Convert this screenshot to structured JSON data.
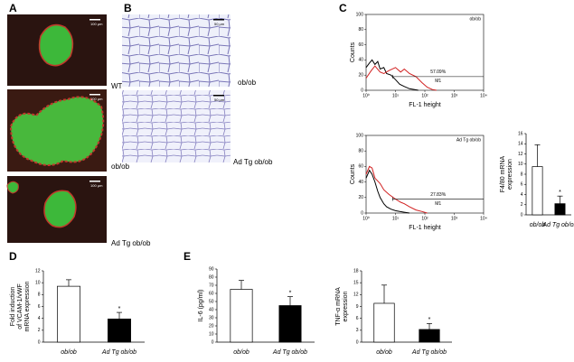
{
  "panels": {
    "a": "A",
    "b": "B",
    "c": "C",
    "d": "D",
    "e": "E"
  },
  "images": {
    "a_captions": [
      "WT",
      "ob/ob",
      "Ad Tg ob/ob"
    ],
    "a_scale": "100 μm",
    "b_captions": [
      "ob/ob",
      "Ad Tg ob/ob"
    ],
    "b_scale": "50 μm"
  },
  "chart_data": [
    {
      "type": "flow",
      "title": "ob/ob",
      "ylabel": "Counts",
      "xlabel": "FL-1 height",
      "log_x": true,
      "xlim": [
        1,
        10000
      ],
      "xticks": [
        {
          "value": 1,
          "label": "10⁰"
        },
        {
          "value": 10,
          "label": "10¹"
        },
        {
          "value": 100,
          "label": "10²"
        },
        {
          "value": 1000,
          "label": "10³"
        },
        {
          "value": 10000,
          "label": "10⁴"
        }
      ],
      "ylim": [
        0,
        100
      ],
      "yticks": [
        0,
        20,
        40,
        60,
        80,
        100
      ],
      "gate": {
        "x": [
          8,
          10000
        ],
        "y": 18,
        "label": "M1",
        "percent": "57.09%"
      },
      "series": [
        {
          "color": "#000000",
          "x": [
            1,
            1.3,
            1.6,
            2,
            2.5,
            3,
            4,
            5,
            7,
            10,
            14,
            20,
            30,
            45,
            60
          ],
          "values": [
            30,
            36,
            40,
            34,
            38,
            28,
            30,
            22,
            20,
            14,
            8,
            5,
            2,
            1,
            0
          ]
        },
        {
          "color": "#d11f1f",
          "x": [
            1,
            1.5,
            2,
            3,
            4,
            6,
            10,
            15,
            20,
            30,
            50,
            80,
            120,
            180,
            250
          ],
          "values": [
            16,
            26,
            32,
            24,
            22,
            26,
            30,
            24,
            28,
            22,
            18,
            10,
            4,
            1,
            0
          ]
        }
      ]
    },
    {
      "type": "flow",
      "title": "Ad Tg ob/ob",
      "ylabel": "Counts",
      "xlabel": "FL-1 height",
      "log_x": true,
      "xlim": [
        1,
        10000
      ],
      "xticks": [
        {
          "value": 1,
          "label": "10⁰"
        },
        {
          "value": 10,
          "label": "10¹"
        },
        {
          "value": 100,
          "label": "10²"
        },
        {
          "value": 1000,
          "label": "10³"
        },
        {
          "value": 10000,
          "label": "10⁴"
        }
      ],
      "ylim": [
        0,
        100
      ],
      "yticks": [
        0,
        20,
        40,
        60,
        80,
        100
      ],
      "gate": {
        "x": [
          8,
          10000
        ],
        "y": 18,
        "label": "M1",
        "percent": "27.83%"
      },
      "series": [
        {
          "color": "#000000",
          "x": [
            1,
            1.3,
            1.6,
            2,
            2.5,
            3,
            4,
            5,
            7,
            10,
            14,
            20,
            30
          ],
          "values": [
            45,
            55,
            50,
            40,
            28,
            20,
            12,
            8,
            5,
            3,
            2,
            1,
            0
          ]
        },
        {
          "color": "#d11f1f",
          "x": [
            1,
            1.3,
            1.6,
            2,
            3,
            4,
            6,
            10,
            15,
            20,
            30,
            50,
            80,
            120
          ],
          "values": [
            50,
            60,
            58,
            45,
            38,
            30,
            24,
            18,
            14,
            12,
            8,
            4,
            2,
            0
          ]
        }
      ]
    },
    {
      "type": "bar",
      "ylabel": [
        "F4/80 mRNA",
        "expression"
      ],
      "categories": [
        "ob/ob",
        "Ad Tg ob/ob"
      ],
      "values": [
        9.5,
        2.2
      ],
      "errors": [
        4.3,
        1.5
      ],
      "colors": [
        "#ffffff",
        "#000000"
      ],
      "ylim": [
        0,
        16
      ],
      "yticks": [
        0,
        2,
        4,
        6,
        8,
        10,
        12,
        14,
        16
      ],
      "marker": "*",
      "significant": [
        false,
        true
      ]
    },
    {
      "type": "bar",
      "ylabel": [
        "Fold induction",
        "of VCAM-1/vWF",
        "mRNA expression"
      ],
      "categories": [
        "ob/ob",
        "Ad Tg ob/ob"
      ],
      "values": [
        9.4,
        3.9
      ],
      "errors": [
        1.1,
        1.1
      ],
      "colors": [
        "#ffffff",
        "#000000"
      ],
      "ylim": [
        0,
        12
      ],
      "yticks": [
        0,
        2,
        4,
        6,
        8,
        10,
        12
      ],
      "marker": "*",
      "significant": [
        false,
        true
      ]
    },
    {
      "type": "bar",
      "ylabel": [
        "IL-6 (pg/ml)"
      ],
      "categories": [
        "ob/ob",
        "Ad Tg ob/ob"
      ],
      "values": [
        65,
        45
      ],
      "errors": [
        11,
        11
      ],
      "colors": [
        "#ffffff",
        "#000000"
      ],
      "ylim": [
        0,
        90
      ],
      "yticks": [
        0,
        10,
        20,
        30,
        40,
        50,
        60,
        70,
        80,
        90
      ],
      "marker": "*",
      "significant": [
        false,
        true
      ]
    },
    {
      "type": "bar",
      "ylabel": [
        "TNF-α mRNA",
        "expression"
      ],
      "categories": [
        "ob/ob",
        "Ad Tg ob/ob"
      ],
      "values": [
        9.8,
        3.2
      ],
      "errors": [
        4.6,
        1.5
      ],
      "colors": [
        "#ffffff",
        "#000000"
      ],
      "ylim": [
        0,
        18
      ],
      "yticks": [
        0,
        3,
        6,
        9,
        12,
        15,
        18
      ],
      "marker": "*",
      "significant": [
        false,
        true
      ]
    }
  ]
}
